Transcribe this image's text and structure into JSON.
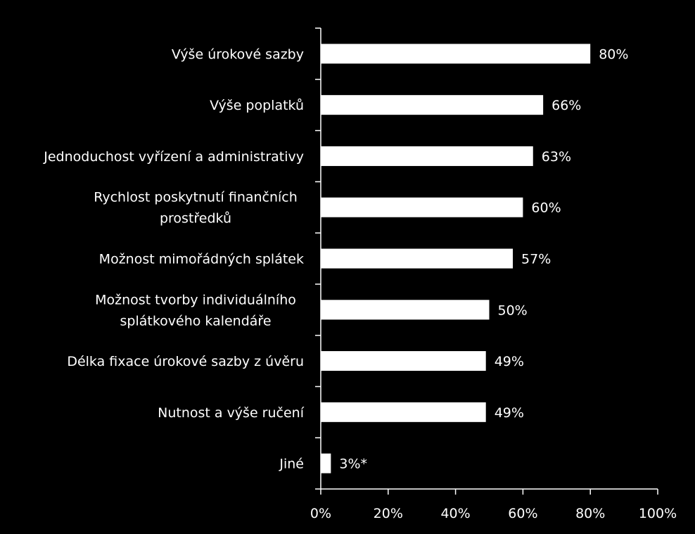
{
  "chart_data": {
    "type": "bar",
    "orientation": "horizontal",
    "title": "",
    "xlabel": "",
    "ylabel": "",
    "xlim": [
      0,
      100
    ],
    "x_ticks": [
      0,
      20,
      40,
      60,
      80,
      100
    ],
    "x_tick_labels": [
      "0%",
      "20%",
      "40%",
      "60%",
      "80%",
      "100%"
    ],
    "grid": false,
    "legend": "none",
    "colors": {
      "background": "#000000",
      "bar": "#ffffff",
      "axis": "#ffffff",
      "text": "#ffffff"
    },
    "categories": [
      "Výše úrokové sazby",
      "Výše poplatků",
      "Jednoduchost vyřízení a administrativy",
      "Rychlost poskytnutí finančních prostředků",
      "Možnost mimořádných splátek",
      "Možnost tvorby individuálního splátkového kalendáře",
      "Délka fixace úrokové sazby z úvěru",
      "Nutnost a výše ručení",
      "Jiné"
    ],
    "category_label_lines": [
      [
        "Výše úrokové sazby"
      ],
      [
        "Výše poplatků"
      ],
      [
        "Jednoduchost vyřízení a administrativy"
      ],
      [
        "Rychlost poskytnutí finančních",
        "prostředků"
      ],
      [
        "Možnost mimořádných splátek"
      ],
      [
        "Možnost tvorby individuálního",
        "splátkového kalendáře"
      ],
      [
        "Délka fixace úrokové sazby z úvěru"
      ],
      [
        "Nutnost a výše ručení"
      ],
      [
        "Jiné"
      ]
    ],
    "values": [
      80,
      66,
      63,
      60,
      57,
      50,
      49,
      49,
      3
    ],
    "data_labels": [
      "80%",
      "66%",
      "63%",
      "60%",
      "57%",
      "50%",
      "49%",
      "49%",
      "3%*"
    ]
  }
}
